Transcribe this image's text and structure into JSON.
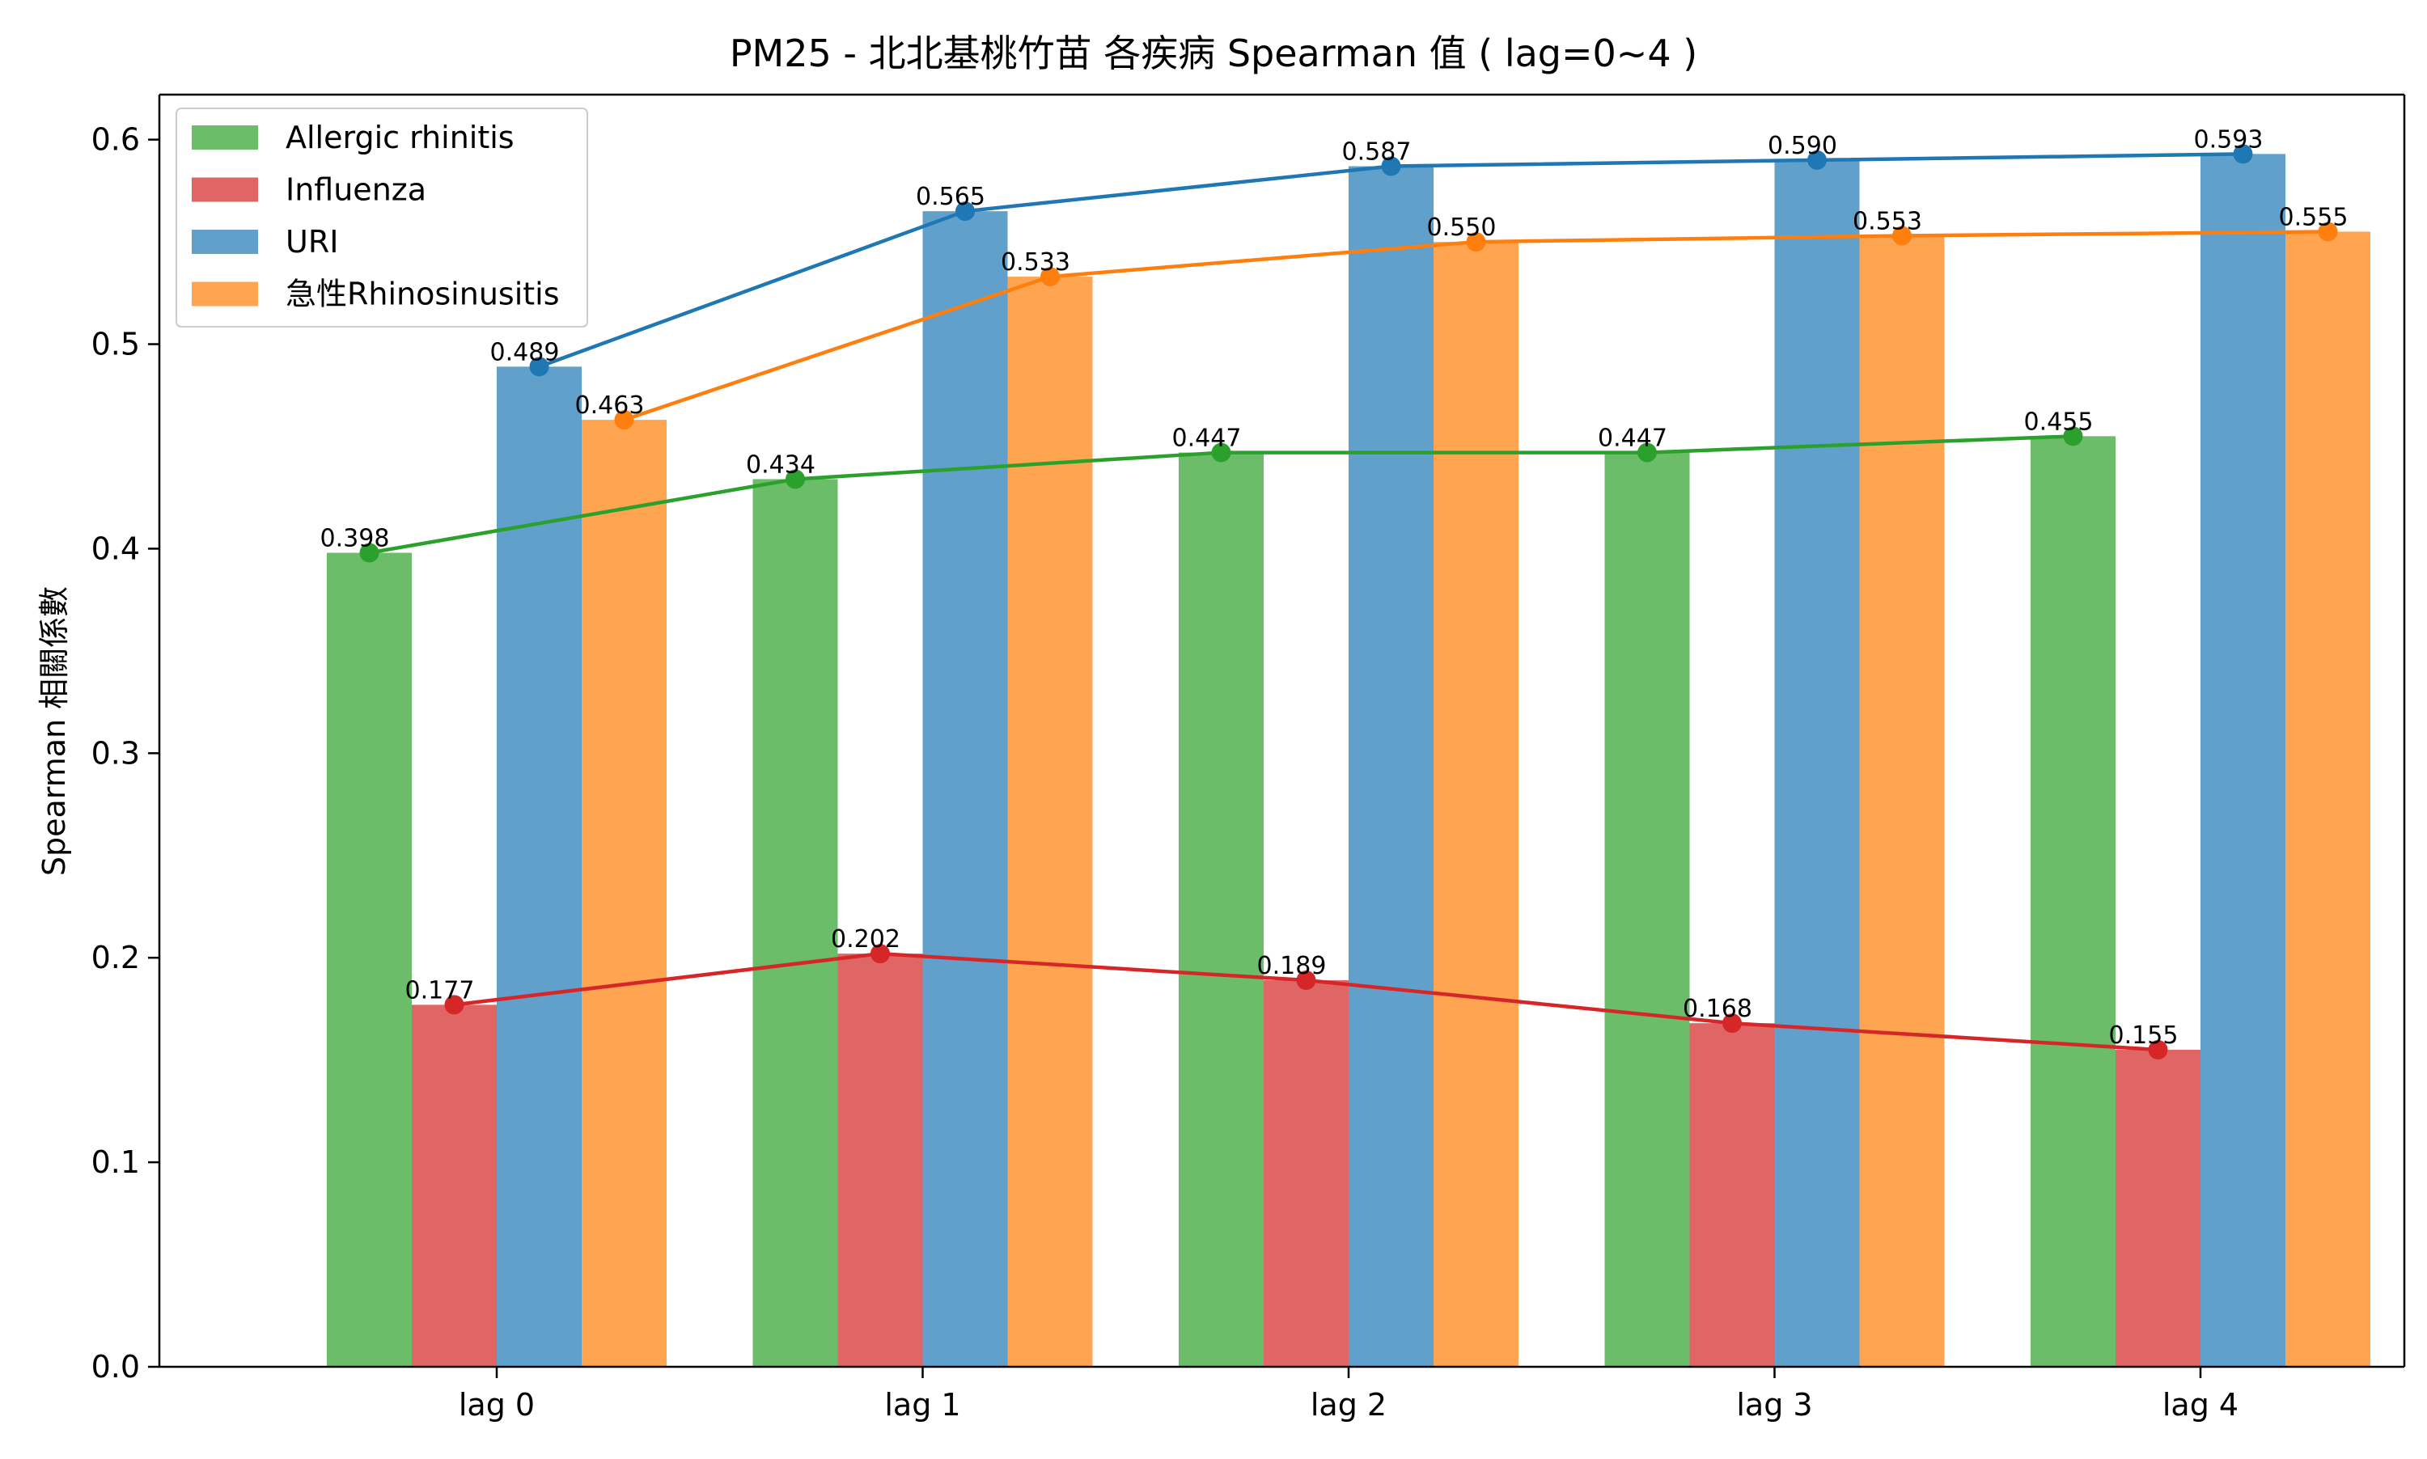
{
  "chart_data": {
    "type": "bar",
    "title": "PM25 - 北北基桃竹苗 各疾病 Spearman 值 ( lag=0~4 )",
    "xlabel": "",
    "ylabel": "Spearman 相關係數",
    "categories": [
      "lag 0",
      "lag 1",
      "lag 2",
      "lag 3",
      "lag 4"
    ],
    "ylim": [
      0,
      0.622
    ],
    "yticks": [
      0.0,
      0.1,
      0.2,
      0.3,
      0.4,
      0.5,
      0.6
    ],
    "ytick_labels": [
      "0.0",
      "0.1",
      "0.2",
      "0.3",
      "0.4",
      "0.5",
      "0.6"
    ],
    "legend_position": "top-left",
    "grid": false,
    "overlay": "line with markers connecting each series' bar values",
    "series": [
      {
        "name": "Allergic rhinitis",
        "bar_color": "#6cbd6a",
        "line_color": "#2ca02c",
        "values": [
          0.398,
          0.434,
          0.447,
          0.447,
          0.455
        ],
        "labels": [
          "0.398",
          "0.434",
          "0.447",
          "0.447",
          "0.455"
        ]
      },
      {
        "name": "Influenza",
        "bar_color": "#e06666",
        "line_color": "#d62728",
        "values": [
          0.177,
          0.202,
          0.189,
          0.168,
          0.155
        ],
        "labels": [
          "0.177",
          "0.202",
          "0.189",
          "0.168",
          "0.155"
        ]
      },
      {
        "name": "URI",
        "bar_color": "#62a0cc",
        "line_color": "#1f77b4",
        "values": [
          0.489,
          0.565,
          0.587,
          0.59,
          0.593
        ],
        "labels": [
          "0.489",
          "0.565",
          "0.587",
          "0.590",
          "0.593"
        ]
      },
      {
        "name": "急性Rhinosinusitis",
        "bar_color": "#ffa552",
        "line_color": "#ff7f0e",
        "values": [
          0.463,
          0.533,
          0.55,
          0.553,
          0.555
        ],
        "labels": [
          "0.463",
          "0.533",
          "0.550",
          "0.553",
          "0.555"
        ]
      }
    ]
  }
}
